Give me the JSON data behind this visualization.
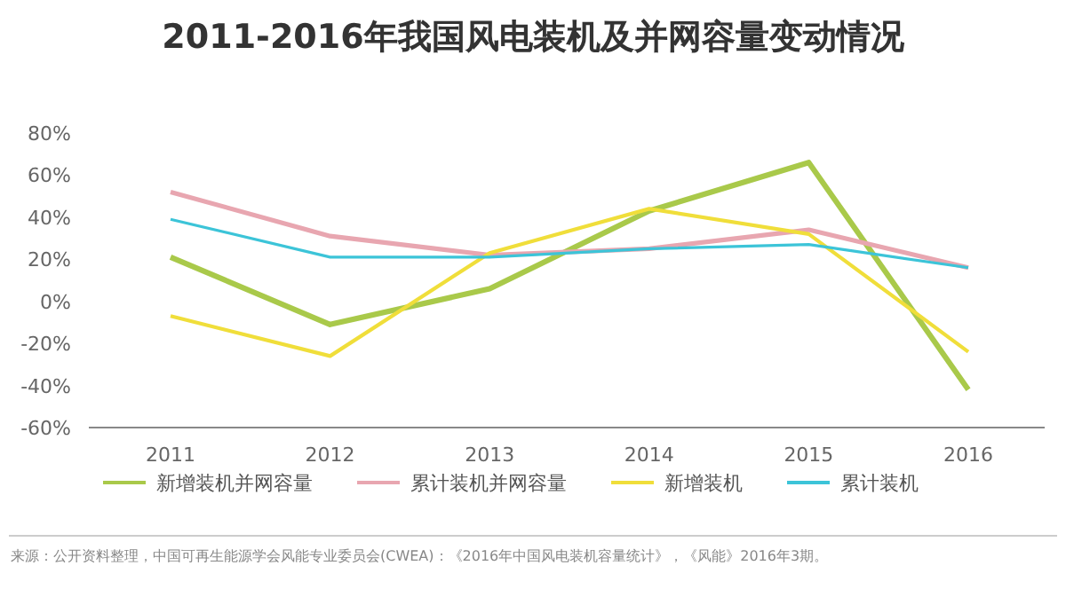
{
  "chart_data": {
    "type": "line",
    "title": "2011-2016年我国风电装机及并网容量变动情况",
    "categories": [
      "2011",
      "2012",
      "2013",
      "2014",
      "2015",
      "2016"
    ],
    "series": [
      {
        "name": "新增装机并网容量",
        "color": "#a9c94a",
        "values": [
          21,
          -11,
          6,
          43,
          66,
          -42
        ]
      },
      {
        "name": "累计装机并网容量",
        "color": "#e8a6b0",
        "values": [
          52,
          31,
          22,
          25,
          34,
          16
        ]
      },
      {
        "name": "新增装机",
        "color": "#f0de3a",
        "values": [
          -7,
          -26,
          23,
          44,
          32,
          -24
        ]
      },
      {
        "name": "累计装机",
        "color": "#3cc4d8",
        "values": [
          39,
          21,
          21,
          25,
          27,
          16
        ]
      }
    ],
    "ylim": [
      -60,
      80
    ],
    "yticks": [
      {
        "value": -60,
        "label": "-60%"
      },
      {
        "value": -40,
        "label": "-40%"
      },
      {
        "value": -20,
        "label": "-20%"
      },
      {
        "value": 0,
        "label": "0%"
      },
      {
        "value": 20,
        "label": "20%"
      },
      {
        "value": 40,
        "label": "40%"
      },
      {
        "value": 60,
        "label": "60%"
      },
      {
        "value": 80,
        "label": "80%"
      }
    ],
    "grid": false,
    "legend": "bottom",
    "marker": "none",
    "line_style": "solid",
    "annotations": [
      "来源：公开资料整理，中国可再生能源学会风能专业委员会(CWEA)：《2016年中国风电装机容量统计》，《风能》2016年3期。"
    ]
  }
}
